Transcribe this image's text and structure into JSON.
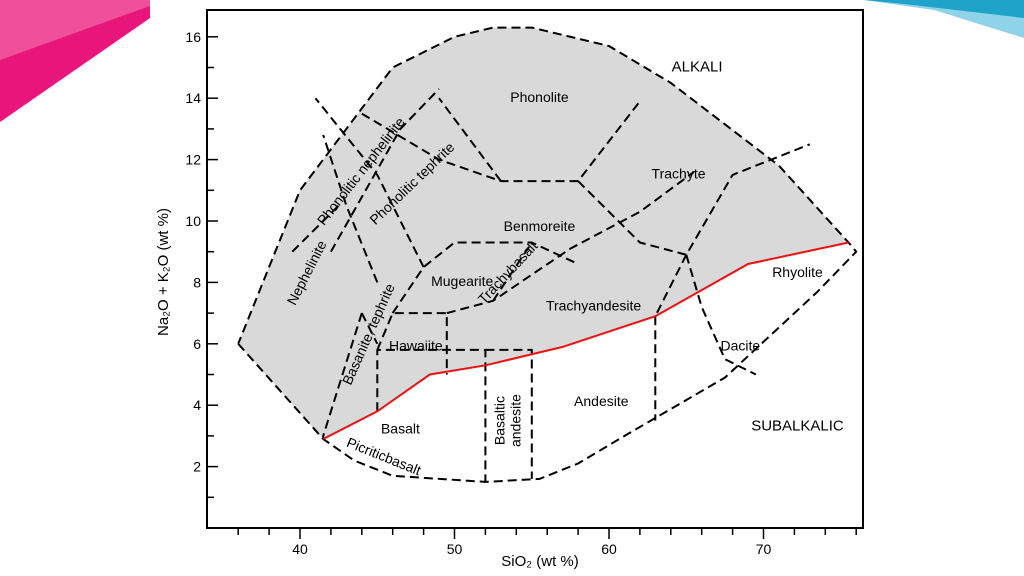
{
  "slide": {
    "accent_left": "#e8157a",
    "accent_left_2": "#f0509a",
    "accent_right": "#1fa3c9",
    "accent_right_2": "#8fd3ea"
  },
  "chart_data": {
    "type": "diagram",
    "title": "",
    "xlabel": "SiO₂ (wt %)",
    "ylabel": "Na₂O + K₂O (wt %)",
    "xlim": [
      34.5,
      76.5
    ],
    "ylim": [
      0,
      17
    ],
    "x_ticks": [
      40,
      50,
      60,
      70
    ],
    "y_ticks": [
      2,
      4,
      6,
      8,
      10,
      12,
      14,
      16
    ],
    "x_tick_labels": [
      "40",
      "50",
      "60",
      "70"
    ],
    "y_tick_labels": [
      "2",
      "4",
      "6",
      "8",
      "10",
      "12",
      "14",
      "16"
    ],
    "fill_color": "#d9d9d9",
    "divider_color": "#ee1111",
    "alkaline_field": [
      [
        36,
        6
      ],
      [
        41.5,
        2.9
      ],
      [
        45,
        3.8
      ],
      [
        48.4,
        5
      ],
      [
        52,
        5.3
      ],
      [
        57,
        5.9
      ],
      [
        63,
        6.9
      ],
      [
        69,
        8.6
      ],
      [
        75.5,
        9.3
      ],
      [
        71,
        11.8
      ],
      [
        64,
        14.5
      ],
      [
        60,
        15.7
      ],
      [
        55,
        16.3
      ],
      [
        52.5,
        16.3
      ],
      [
        50,
        16
      ],
      [
        46,
        15
      ],
      [
        40,
        11
      ]
    ],
    "outer_boundary": [
      [
        36,
        6
      ],
      [
        41.5,
        2.9
      ],
      [
        43.5,
        2.2
      ],
      [
        46,
        1.7
      ],
      [
        52,
        1.5
      ],
      [
        55.5,
        1.6
      ],
      [
        58,
        2.1
      ],
      [
        61,
        3
      ],
      [
        67.5,
        4.9
      ],
      [
        73.5,
        7.7
      ],
      [
        76,
        9
      ],
      [
        75.5,
        9.3
      ],
      [
        71,
        11.8
      ],
      [
        64,
        14.5
      ],
      [
        60,
        15.7
      ],
      [
        55,
        16.3
      ],
      [
        52.5,
        16.3
      ],
      [
        50,
        16
      ],
      [
        46,
        15
      ],
      [
        40,
        11
      ],
      [
        36,
        6
      ]
    ],
    "divider_line": [
      [
        41.5,
        2.9
      ],
      [
        45,
        3.8
      ],
      [
        48.4,
        5
      ],
      [
        52,
        5.3
      ],
      [
        57,
        5.9
      ],
      [
        63,
        6.9
      ],
      [
        69,
        8.6
      ],
      [
        75.5,
        9.3
      ]
    ],
    "field_boundaries": [
      [
        [
          45,
          3.8
        ],
        [
          45,
          5.8
        ],
        [
          52,
          5.8
        ],
        [
          52,
          1.5
        ]
      ],
      [
        [
          52,
          5.8
        ],
        [
          55,
          5.8
        ],
        [
          55,
          1.6
        ]
      ],
      [
        [
          63,
          6.9
        ],
        [
          63,
          3.5
        ]
      ],
      [
        [
          45,
          5.8
        ],
        [
          46,
          7
        ],
        [
          49.5,
          7
        ],
        [
          49.5,
          5
        ]
      ],
      [
        [
          46,
          7
        ],
        [
          48,
          8.5
        ],
        [
          50,
          9.3
        ],
        [
          55,
          9.3
        ],
        [
          58,
          8.6
        ]
      ],
      [
        [
          49.5,
          7
        ],
        [
          52.5,
          7.4
        ],
        [
          57.5,
          9.1
        ],
        [
          62,
          10.3
        ],
        [
          65.5,
          11.6
        ]
      ],
      [
        [
          52.5,
          7.4
        ],
        [
          55,
          9.3
        ]
      ],
      [
        [
          44,
          7
        ],
        [
          41.5,
          3
        ],
        [
          41.5,
          2.9
        ]
      ],
      [
        [
          44,
          7
        ],
        [
          45,
          6
        ]
      ],
      [
        [
          48,
          8.5
        ],
        [
          45,
          11.5
        ],
        [
          41,
          14
        ]
      ],
      [
        [
          45,
          8
        ],
        [
          43,
          10.5
        ],
        [
          41.5,
          12.8
        ]
      ],
      [
        [
          42,
          9
        ],
        [
          46.5,
          13
        ],
        [
          49,
          14.3
        ]
      ],
      [
        [
          39.5,
          9
        ],
        [
          42.5,
          10.5
        ]
      ],
      [
        [
          44,
          13.5
        ],
        [
          49,
          12
        ],
        [
          53,
          11.3
        ],
        [
          58,
          11.3
        ],
        [
          62,
          13.9
        ]
      ],
      [
        [
          53,
          11.3
        ],
        [
          49,
          14
        ]
      ],
      [
        [
          58,
          11.3
        ],
        [
          62,
          9.3
        ],
        [
          65,
          8.9
        ],
        [
          68,
          11.5
        ],
        [
          73,
          12.5
        ]
      ],
      [
        [
          65,
          8.9
        ],
        [
          63,
          6.9
        ]
      ],
      [
        [
          65,
          8.9
        ],
        [
          66,
          7.2
        ],
        [
          67.5,
          5.5
        ],
        [
          69.5,
          5
        ]
      ]
    ],
    "field_names": [
      {
        "name": "Phonolite",
        "x": 55.5,
        "y": 14,
        "rotate": 0
      },
      {
        "name": "Trachyte",
        "x": 64.5,
        "y": 11.5,
        "rotate": 0
      },
      {
        "name": "Benmoreite",
        "x": 55.5,
        "y": 9.8,
        "rotate": 0
      },
      {
        "name": "Mugearite",
        "x": 50.5,
        "y": 8,
        "rotate": 0
      },
      {
        "name": "Trachybasalt",
        "x": 53.5,
        "y": 8.3,
        "rotate": -47
      },
      {
        "name": "Trachyandesite",
        "x": 59,
        "y": 7.2,
        "rotate": 0
      },
      {
        "name": "Hawaiite",
        "x": 47.5,
        "y": 5.9,
        "rotate": 0
      },
      {
        "name": "Basalt",
        "x": 46.5,
        "y": 3.2,
        "rotate": 0
      },
      {
        "name": "Basaltic\nandesite",
        "x": 53.5,
        "y": 3.5,
        "rotate": -90
      },
      {
        "name": "Andesite",
        "x": 59.5,
        "y": 4.1,
        "rotate": 0
      },
      {
        "name": "Dacite",
        "x": 68.5,
        "y": 5.9,
        "rotate": 0
      },
      {
        "name": "Rhyolite",
        "x": 72.2,
        "y": 8.3,
        "rotate": 0
      },
      {
        "name": "Nephelinite",
        "x": 40.5,
        "y": 8.3,
        "rotate": -63
      },
      {
        "name": "Basanite, tephrite",
        "x": 44.5,
        "y": 6.3,
        "rotate": -66
      },
      {
        "name": "Phonolitic nephelinite",
        "x": 44,
        "y": 11.6,
        "rotate": -52
      },
      {
        "name": "Phonolitic tephrite",
        "x": 47.3,
        "y": 11.2,
        "rotate": -44
      },
      {
        "name": "Picriticbasalt",
        "x": 45.4,
        "y": 2.3,
        "rotate": 22
      }
    ],
    "annotations": [
      {
        "text": "ALKALI",
        "x": 65.7,
        "y": 15
      },
      {
        "text": "SUBALKALIC",
        "x": 72.2,
        "y": 3.3
      }
    ]
  }
}
